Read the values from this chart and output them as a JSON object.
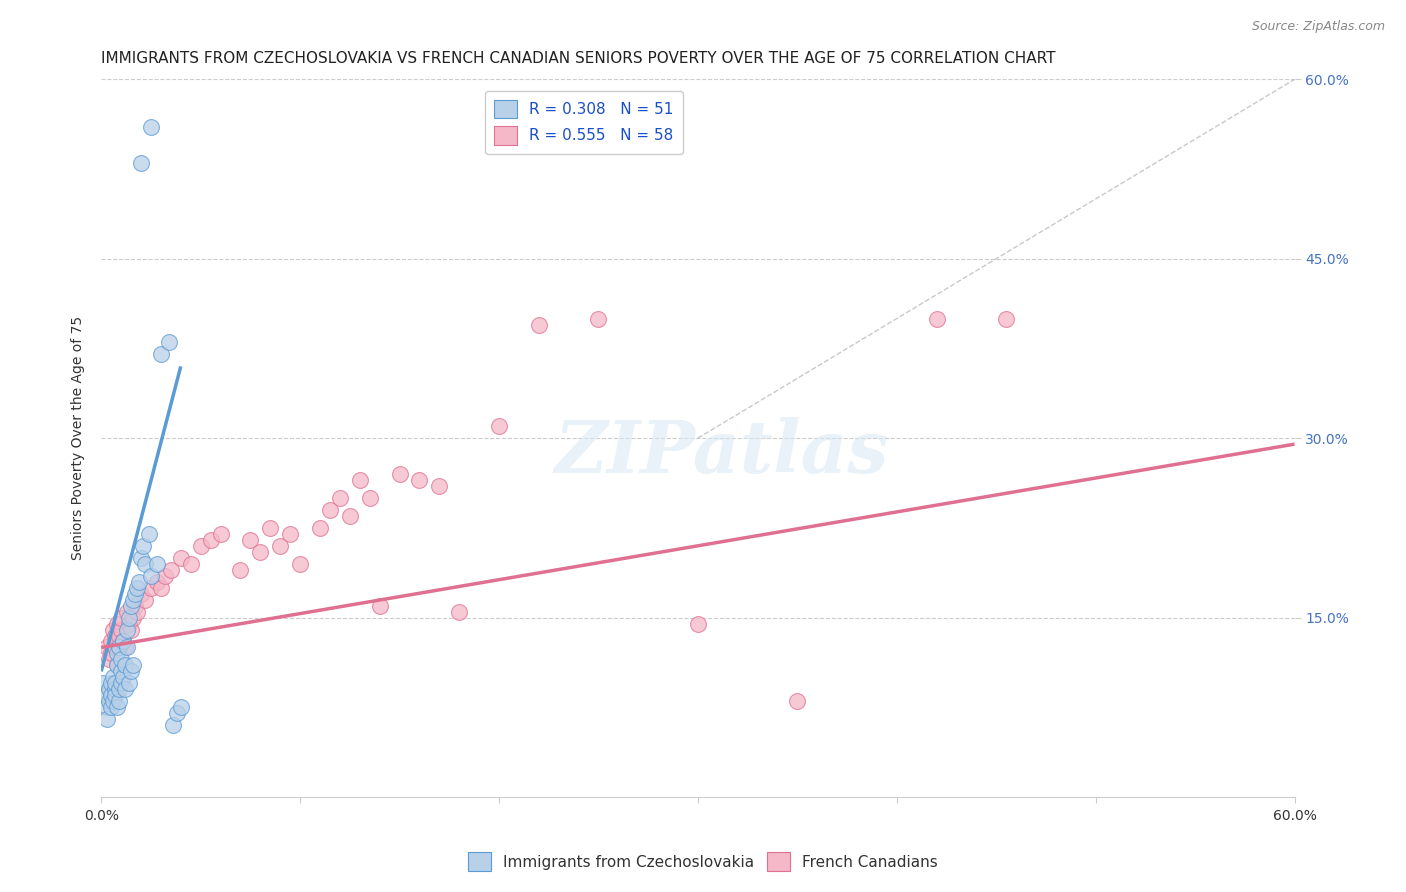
{
  "title": "IMMIGRANTS FROM CZECHOSLOVAKIA VS FRENCH CANADIAN SENIORS POVERTY OVER THE AGE OF 75 CORRELATION CHART",
  "source": "Source: ZipAtlas.com",
  "ylabel": "Seniors Poverty Over the Age of 75",
  "xlim": [
    0.0,
    0.6
  ],
  "ylim": [
    0.0,
    0.6
  ],
  "xtick_values": [
    0.0,
    0.1,
    0.2,
    0.3,
    0.4,
    0.5,
    0.6
  ],
  "xtick_show": [
    0.0,
    0.6
  ],
  "ytick_values": [
    0.0,
    0.15,
    0.3,
    0.45,
    0.6
  ],
  "ytick_labels_right": [
    "15.0%",
    "30.0%",
    "45.0%",
    "60.0%"
  ],
  "ytick_right_values": [
    0.15,
    0.3,
    0.45,
    0.6
  ],
  "background_color": "#ffffff",
  "blue_R": 0.308,
  "blue_N": 51,
  "pink_R": 0.555,
  "pink_N": 58,
  "blue_color": "#b8d0e8",
  "blue_edge_color": "#5b9bd5",
  "pink_color": "#f4b8c8",
  "pink_edge_color": "#e07090",
  "blue_scatter_x": [
    0.001,
    0.002,
    0.003,
    0.003,
    0.004,
    0.004,
    0.005,
    0.005,
    0.005,
    0.006,
    0.006,
    0.007,
    0.007,
    0.007,
    0.008,
    0.008,
    0.008,
    0.009,
    0.009,
    0.009,
    0.01,
    0.01,
    0.01,
    0.011,
    0.011,
    0.012,
    0.012,
    0.013,
    0.013,
    0.014,
    0.014,
    0.015,
    0.015,
    0.016,
    0.016,
    0.017,
    0.018,
    0.019,
    0.02,
    0.021,
    0.022,
    0.024,
    0.025,
    0.028,
    0.03,
    0.034,
    0.036,
    0.038,
    0.04,
    0.02,
    0.025
  ],
  "blue_scatter_y": [
    0.095,
    0.085,
    0.075,
    0.065,
    0.08,
    0.09,
    0.075,
    0.085,
    0.095,
    0.08,
    0.1,
    0.09,
    0.085,
    0.095,
    0.075,
    0.11,
    0.12,
    0.08,
    0.09,
    0.125,
    0.095,
    0.105,
    0.115,
    0.1,
    0.13,
    0.09,
    0.11,
    0.125,
    0.14,
    0.095,
    0.15,
    0.105,
    0.16,
    0.11,
    0.165,
    0.17,
    0.175,
    0.18,
    0.2,
    0.21,
    0.195,
    0.22,
    0.185,
    0.195,
    0.37,
    0.38,
    0.06,
    0.07,
    0.075,
    0.53,
    0.56
  ],
  "pink_scatter_x": [
    0.003,
    0.004,
    0.005,
    0.005,
    0.006,
    0.007,
    0.007,
    0.008,
    0.008,
    0.009,
    0.009,
    0.01,
    0.01,
    0.011,
    0.012,
    0.013,
    0.014,
    0.015,
    0.016,
    0.017,
    0.018,
    0.02,
    0.022,
    0.025,
    0.028,
    0.03,
    0.032,
    0.035,
    0.04,
    0.045,
    0.05,
    0.055,
    0.06,
    0.07,
    0.075,
    0.08,
    0.085,
    0.09,
    0.095,
    0.1,
    0.11,
    0.115,
    0.12,
    0.125,
    0.13,
    0.135,
    0.14,
    0.15,
    0.16,
    0.17,
    0.18,
    0.2,
    0.22,
    0.25,
    0.3,
    0.35,
    0.42,
    0.455
  ],
  "pink_scatter_y": [
    0.125,
    0.115,
    0.13,
    0.12,
    0.14,
    0.125,
    0.135,
    0.11,
    0.145,
    0.125,
    0.135,
    0.14,
    0.15,
    0.13,
    0.125,
    0.155,
    0.145,
    0.14,
    0.15,
    0.16,
    0.155,
    0.17,
    0.165,
    0.175,
    0.18,
    0.175,
    0.185,
    0.19,
    0.2,
    0.195,
    0.21,
    0.215,
    0.22,
    0.19,
    0.215,
    0.205,
    0.225,
    0.21,
    0.22,
    0.195,
    0.225,
    0.24,
    0.25,
    0.235,
    0.265,
    0.25,
    0.16,
    0.27,
    0.265,
    0.26,
    0.155,
    0.31,
    0.395,
    0.4,
    0.145,
    0.08,
    0.4,
    0.4
  ],
  "diag_line_x": [
    0.3,
    0.6
  ],
  "diag_line_y": [
    0.3,
    0.6
  ],
  "blue_trend_x": [
    0.0,
    0.04
  ],
  "blue_trend_y": [
    0.105,
    0.36
  ],
  "pink_trend_x": [
    0.0,
    0.6
  ],
  "pink_trend_y": [
    0.125,
    0.295
  ],
  "legend_labels": [
    "Immigrants from Czechoslovakia",
    "French Canadians"
  ],
  "title_fontsize": 11,
  "axis_label_fontsize": 10,
  "tick_fontsize": 10,
  "legend_fontsize": 11,
  "source_fontsize": 9,
  "watermark_text": "ZIPatlas"
}
